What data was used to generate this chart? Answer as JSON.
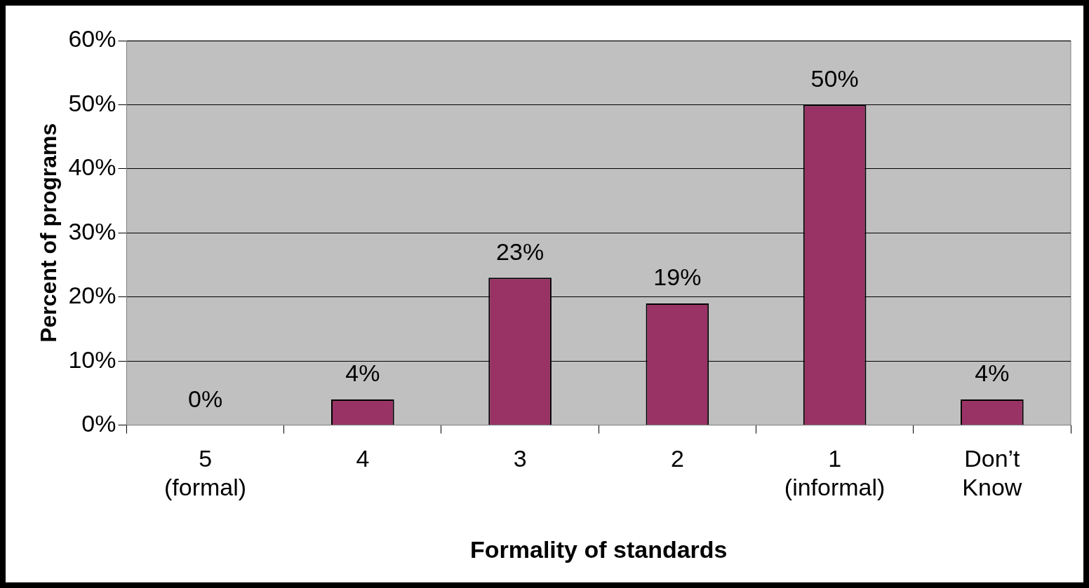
{
  "chart_data": {
    "type": "bar",
    "xlabel": "Formality of standards",
    "ylabel": "Percent of programs",
    "categories": [
      "5\n(formal)",
      "4",
      "3",
      "2",
      "1\n(informal)",
      "Don’t\nKnow"
    ],
    "values": [
      0,
      4,
      23,
      19,
      50,
      4
    ],
    "value_labels": [
      "0%",
      "4%",
      "23%",
      "19%",
      "50%",
      "4%"
    ],
    "color": "#993366",
    "ylim": [
      0,
      60
    ],
    "yticks": [
      {
        "value": 0,
        "label": "0%"
      },
      {
        "value": 10,
        "label": "10%"
      },
      {
        "value": 20,
        "label": "20%"
      },
      {
        "value": 30,
        "label": "30%"
      },
      {
        "value": 40,
        "label": "40%"
      },
      {
        "value": 50,
        "label": "50%"
      },
      {
        "value": 60,
        "label": "60%"
      }
    ],
    "grid": "y",
    "legend": false
  }
}
